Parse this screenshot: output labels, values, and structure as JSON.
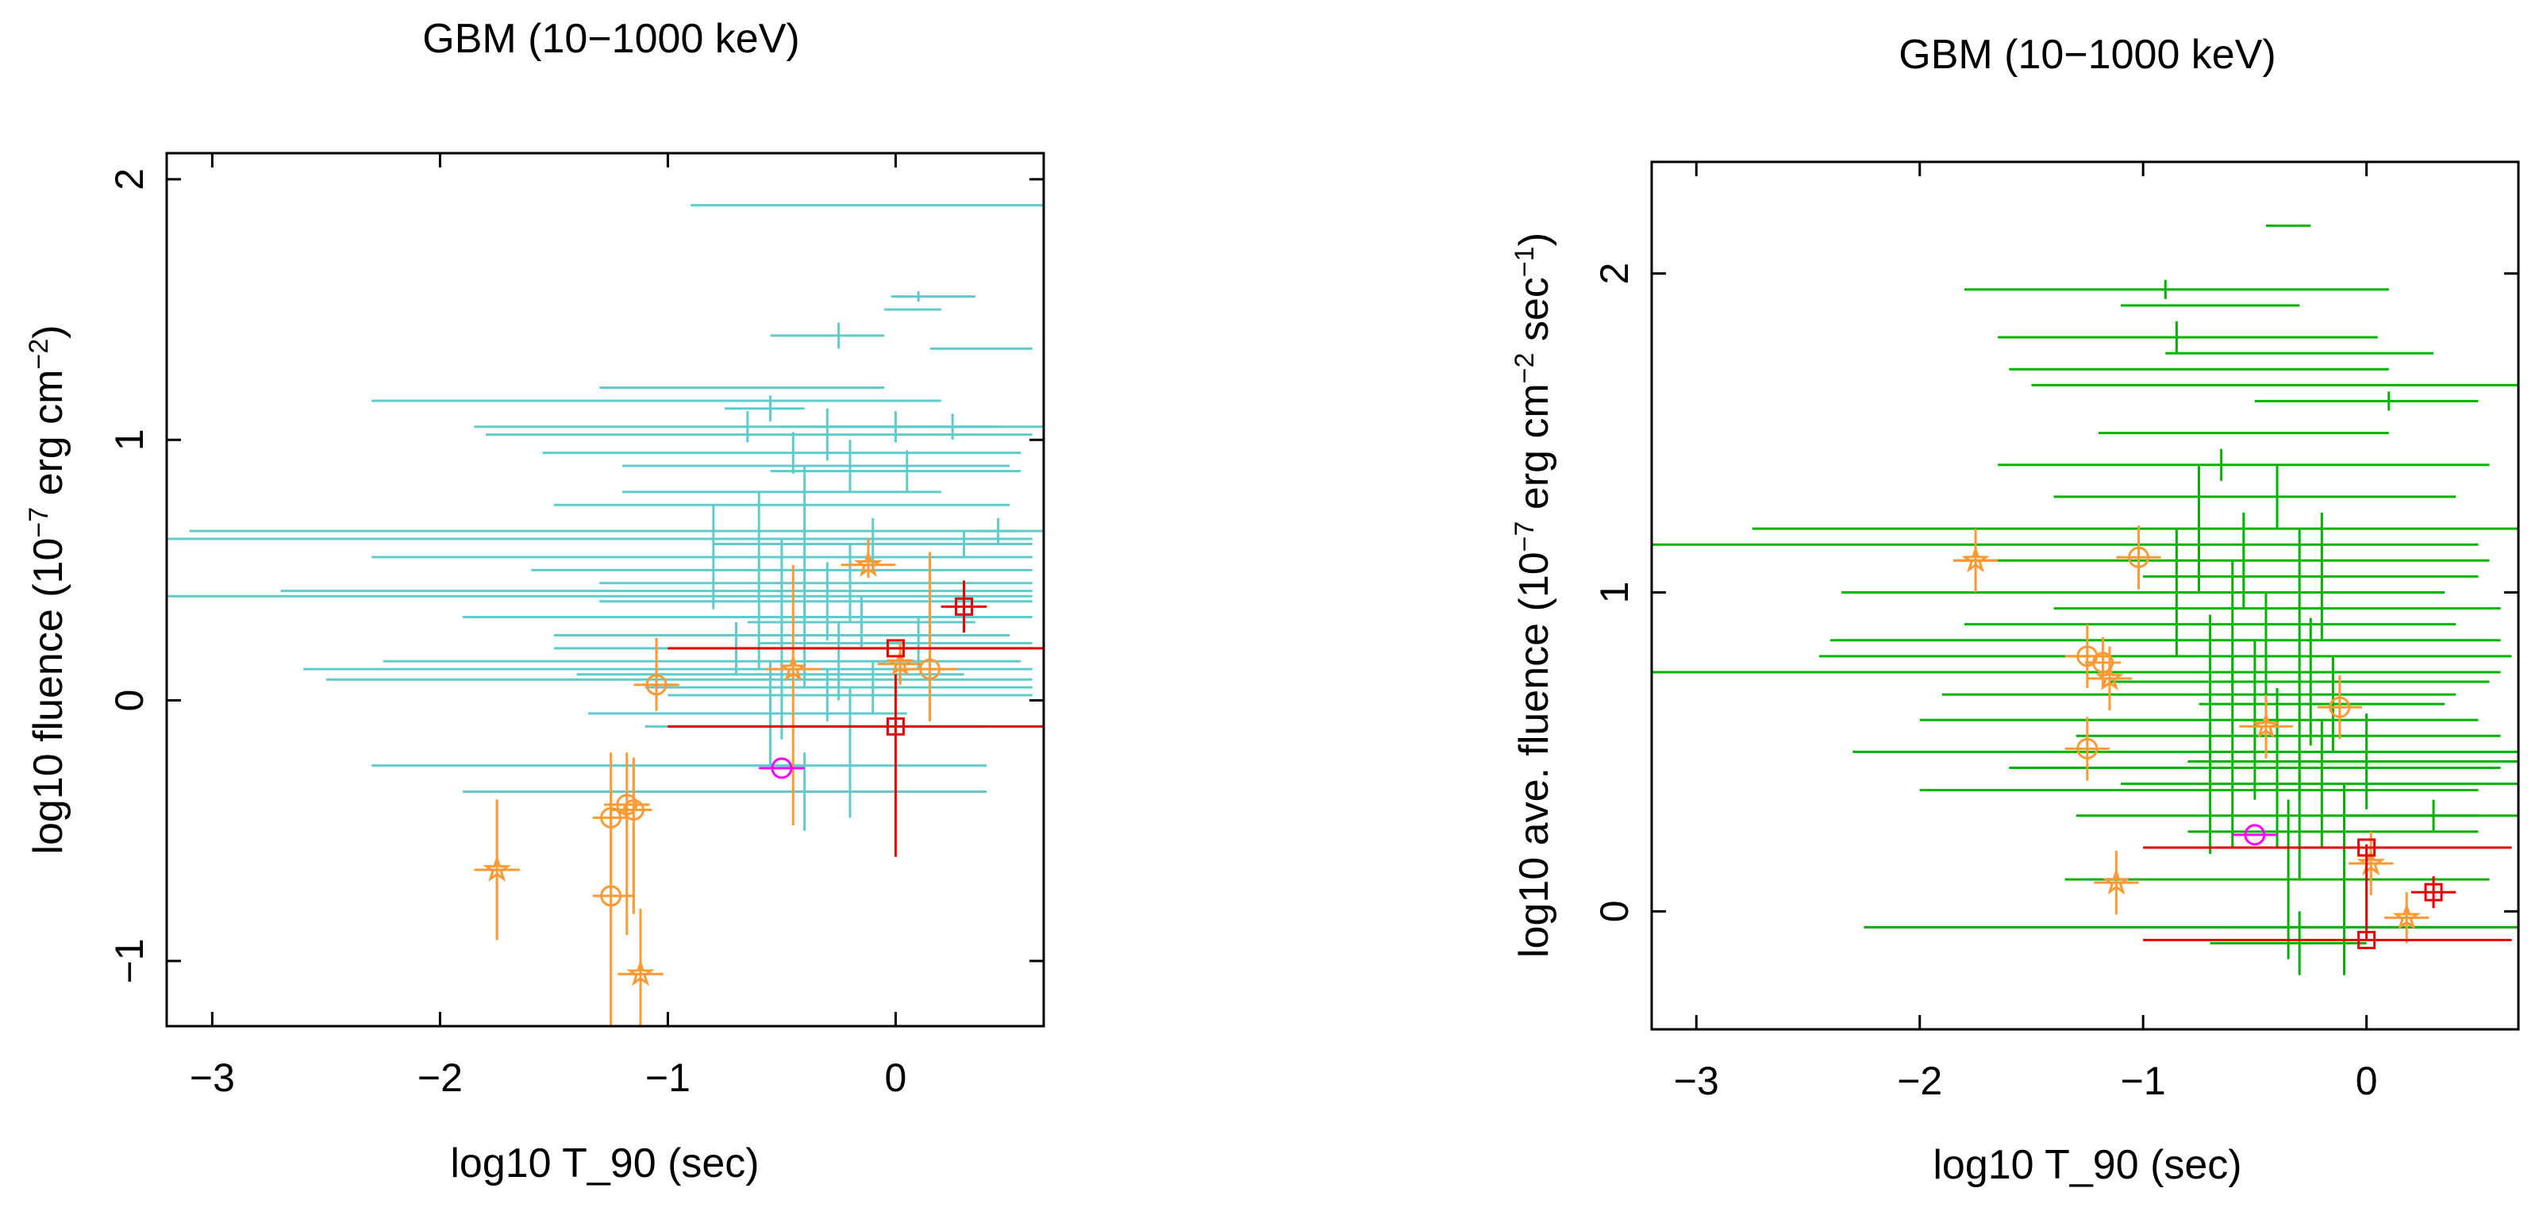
{
  "chart_data": [
    {
      "type": "scatter",
      "title": "GBM (10−1000 keV)",
      "xlabel": "log10 T_90 (sec)",
      "ylabel_parts": [
        "log10 fluence (10",
        "−7",
        " erg cm",
        "−2",
        ")"
      ],
      "xlim": [
        -3.2,
        0.65
      ],
      "ylim": [
        -1.25,
        2.1
      ],
      "xticks": [
        -3,
        -2,
        -1,
        0
      ],
      "xticklabels": [
        "−3",
        "−2",
        "−1",
        "0"
      ],
      "yticks": [
        -1,
        0,
        1,
        2
      ],
      "yticklabels": [
        "−1",
        "0",
        "1",
        "2"
      ],
      "series": [
        {
          "color": "#5fcbcb",
          "marker": "none",
          "points": [
            [
              0.1,
              1.9,
              -1.0,
              0.65,
              0,
              0
            ],
            [
              0.1,
              1.55,
              -0.12,
              0.25,
              0.02,
              0.02
            ],
            [
              0.1,
              1.5,
              -0.15,
              0.1,
              0,
              0
            ],
            [
              -0.25,
              1.4,
              -0.3,
              0.2,
              0.05,
              0.05
            ],
            [
              0.35,
              1.35,
              -0.2,
              0.25,
              0,
              0
            ],
            [
              -0.7,
              1.2,
              -0.6,
              0.65,
              0,
              0
            ],
            [
              -0.8,
              1.15,
              -1.5,
              1.0,
              0,
              0
            ],
            [
              -0.65,
              1.05,
              -1.2,
              1.1,
              0.06,
              0.06
            ],
            [
              -0.3,
              1.02,
              -1.5,
              0.9,
              0.1,
              0.1
            ],
            [
              0.0,
              1.05,
              -0.5,
              0.4,
              0.06,
              0.06
            ],
            [
              0.25,
              1.05,
              -0.6,
              0.4,
              0.05,
              0.05
            ],
            [
              -0.45,
              0.95,
              -1.1,
              1.0,
              0.08,
              0.08
            ],
            [
              -0.2,
              0.9,
              -1.0,
              0.7,
              0.1,
              0.1
            ],
            [
              0.05,
              0.88,
              -0.6,
              0.5,
              0.08,
              0.08
            ],
            [
              -0.4,
              0.8,
              -0.8,
              0.6,
              0.1,
              0.1
            ],
            [
              -0.7,
              0.75,
              -0.8,
              1.2,
              0,
              0
            ],
            [
              -0.6,
              0.65,
              -2.5,
              1.3,
              0.15,
              0.15
            ],
            [
              -1.5,
              0.62,
              -1.7,
              2.1,
              0,
              0
            ],
            [
              -0.1,
              0.6,
              -0.7,
              0.7,
              0.1,
              0.1
            ],
            [
              0.3,
              0.6,
              -0.4,
              0.3,
              0.05,
              0.05
            ],
            [
              -0.8,
              0.55,
              -1.5,
              1.4,
              0.2,
              0.2
            ],
            [
              -0.4,
              0.5,
              -1.2,
              1.0,
              0.2,
              0.2
            ],
            [
              -0.2,
              0.45,
              -1.1,
              0.8,
              0.15,
              0.15
            ],
            [
              -0.5,
              0.42,
              -2.2,
              1.1,
              0.2,
              0.2
            ],
            [
              -1.2,
              0.4,
              -2.0,
              1.8,
              0,
              0
            ],
            [
              -0.3,
              0.38,
              -1.0,
              0.9,
              0.15,
              0.15
            ],
            [
              -0.6,
              0.32,
              -1.3,
              1.2,
              0.2,
              0.2
            ],
            [
              -0.15,
              0.3,
              -0.5,
              0.5,
              0.1,
              0.1
            ],
            [
              -0.4,
              0.25,
              -1.1,
              0.9,
              0.2,
              0.2
            ],
            [
              0.1,
              0.22,
              -0.7,
              0.5,
              0.1,
              0.1
            ],
            [
              -0.7,
              0.2,
              -0.8,
              1.3,
              0.1,
              0.1
            ],
            [
              -0.25,
              0.15,
              -2.0,
              0.8,
              0.15,
              0.15
            ],
            [
              -0.9,
              0.12,
              -1.7,
              1.5,
              0,
              0
            ],
            [
              -0.5,
              0.1,
              -0.9,
              0.8,
              0.25,
              0.25
            ],
            [
              -0.8,
              0.08,
              -1.7,
              1.4,
              0,
              0
            ],
            [
              -0.1,
              0.05,
              -1.0,
              0.7,
              0.1,
              0.1
            ],
            [
              -0.3,
              0.02,
              -0.7,
              0.9,
              0.1,
              0.1
            ],
            [
              -0.55,
              -0.05,
              -0.8,
              0.6,
              0.2,
              0.2
            ],
            [
              -0.2,
              -0.1,
              -0.9,
              0.6,
              0.15,
              0.15
            ],
            [
              -0.5,
              -0.25,
              -1.8,
              0.9,
              0,
              0
            ],
            [
              -0.4,
              -0.35,
              -1.5,
              0.8,
              0.15,
              0.15
            ],
            [
              -0.2,
              -0.35,
              -0.4,
              0.2,
              0.1,
              0.1
            ],
            [
              0.45,
              0.65,
              -0.1,
              0.1,
              0.05,
              0.05
            ],
            [
              -0.55,
              1.12,
              -0.2,
              0.15,
              0.05,
              0.05
            ]
          ]
        },
        {
          "color": "#ff9933",
          "marker": "circle",
          "points": [
            [
              -1.05,
              0.06,
              -0.1,
              0.1,
              0.1,
              0.18
            ],
            [
              -1.25,
              -0.45,
              -0.08,
              0.08,
              0.25,
              0.25
            ],
            [
              -1.25,
              -0.75,
              -0.08,
              0.1,
              0.5,
              0.4
            ],
            [
              -1.18,
              -0.4,
              -0.1,
              0.1,
              0.5,
              0.2
            ],
            [
              -1.15,
              -0.42,
              -0.1,
              0.08,
              0.4,
              0.2
            ],
            [
              0.15,
              0.12,
              -0.12,
              0.12,
              0.2,
              0.45
            ]
          ]
        },
        {
          "color": "#ff9933",
          "marker": "star",
          "points": [
            [
              -1.75,
              -0.65,
              -0.1,
              0.1,
              0.27,
              0.27
            ],
            [
              -1.12,
              -1.05,
              -0.1,
              0.1,
              0.25,
              0.25
            ],
            [
              -0.45,
              0.12,
              -0.12,
              0.12,
              0.6,
              0.4
            ],
            [
              -0.12,
              0.52,
              -0.12,
              0.12,
              0.05,
              0.1
            ],
            [
              0.02,
              0.14,
              -0.1,
              0.1,
              0.08,
              0.08
            ]
          ]
        },
        {
          "color": "#e60000",
          "marker": "square",
          "points": [
            [
              0.0,
              0.2,
              -1.0,
              0.65,
              0,
              0
            ],
            [
              0.0,
              -0.1,
              -1.0,
              0.65,
              0.5,
              0.2
            ],
            [
              0.3,
              0.36,
              -0.1,
              0.1,
              0.1,
              0.1
            ]
          ]
        },
        {
          "color": "#ff00ff",
          "marker": "circle",
          "points": [
            [
              -0.5,
              -0.26,
              -0.1,
              0.1,
              0,
              0
            ]
          ]
        }
      ]
    },
    {
      "type": "scatter",
      "title": "GBM (10−1000 keV)",
      "xlabel": "log10 T_90 (sec)",
      "ylabel_parts": [
        "log10 ave. fluence (10",
        "−7",
        " erg cm",
        "−2",
        " sec",
        "−1",
        ")"
      ],
      "xlim": [
        -3.2,
        0.68
      ],
      "ylim": [
        -0.37,
        2.35
      ],
      "xticks": [
        -3,
        -2,
        -1,
        0
      ],
      "xticklabels": [
        "−3",
        "−2",
        "−1",
        "0"
      ],
      "yticks": [
        0,
        1,
        2
      ],
      "yticklabels": [
        "0",
        "1",
        "2"
      ],
      "series": [
        {
          "color": "#00b300",
          "marker": "none",
          "points": [
            [
              -0.35,
              2.15,
              -0.1,
              0.1,
              0,
              0
            ],
            [
              -0.9,
              1.95,
              -0.9,
              1.0,
              0.03,
              0.03
            ],
            [
              -0.6,
              1.9,
              -0.5,
              0.3,
              0,
              0
            ],
            [
              -0.85,
              1.8,
              -0.8,
              0.9,
              0.05,
              0.05
            ],
            [
              -0.2,
              1.75,
              -0.7,
              0.5,
              0,
              0
            ],
            [
              -0.6,
              1.7,
              -1.0,
              0.7,
              0,
              0
            ],
            [
              -0.3,
              1.65,
              -1.2,
              1.0,
              0,
              0
            ],
            [
              0.1,
              1.6,
              -0.6,
              0.4,
              0.03,
              0.03
            ],
            [
              -0.5,
              1.5,
              -0.7,
              0.6,
              0,
              0
            ],
            [
              -0.65,
              1.4,
              -1.0,
              1.2,
              0.05,
              0.05
            ],
            [
              -0.4,
              1.3,
              -1.0,
              0.8,
              0.1,
              0.1
            ],
            [
              -0.75,
              1.2,
              -2.0,
              1.8,
              0.2,
              0.2
            ],
            [
              -1.5,
              1.15,
              -1.7,
              2.0,
              0,
              0
            ],
            [
              -0.55,
              1.1,
              -1.3,
              1.1,
              0.15,
              0.15
            ],
            [
              -0.2,
              1.05,
              -0.8,
              0.7,
              0.2,
              0.2
            ],
            [
              -0.85,
              1.0,
              -1.5,
              1.2,
              0.2,
              0.2
            ],
            [
              -0.3,
              0.95,
              -1.1,
              0.9,
              0.25,
              0.25
            ],
            [
              -0.6,
              0.9,
              -1.2,
              1.0,
              0.2,
              0.2
            ],
            [
              -1.0,
              0.85,
              -1.4,
              1.6,
              0,
              0
            ],
            [
              -0.45,
              0.8,
              -2.0,
              1.1,
              0.2,
              0.2
            ],
            [
              -1.5,
              0.75,
              -1.7,
              2.1,
              0,
              0
            ],
            [
              -0.25,
              0.72,
              -0.9,
              0.8,
              0.2,
              0.2
            ],
            [
              -0.7,
              0.68,
              -1.2,
              1.1,
              0.25,
              0.25
            ],
            [
              -0.15,
              0.65,
              -0.6,
              0.5,
              0.15,
              0.15
            ],
            [
              -0.5,
              0.6,
              -1.5,
              1.0,
              0.25,
              0.25
            ],
            [
              -0.3,
              0.55,
              -1.0,
              0.9,
              0.2,
              0.2
            ],
            [
              -0.6,
              0.5,
              -1.7,
              1.3,
              0.3,
              0.3
            ],
            [
              0.0,
              0.47,
              -0.8,
              0.7,
              0.15,
              0.15
            ],
            [
              -0.4,
              0.45,
              -1.2,
              1.0,
              0.25,
              0.25
            ],
            [
              -0.2,
              0.4,
              -0.9,
              0.9,
              0.2,
              0.2
            ],
            [
              -0.7,
              0.38,
              -1.3,
              1.2,
              0.2,
              0.2
            ],
            [
              0.3,
              0.3,
              -0.4,
              0.4,
              0.05,
              0.05
            ],
            [
              -0.3,
              0.3,
              -1.0,
              0.8,
              0.2,
              0.2
            ],
            [
              -0.1,
              0.25,
              -0.7,
              0.6,
              0.15,
              0.15
            ],
            [
              -0.35,
              0.1,
              -1.0,
              0.9,
              0.25,
              0.25
            ],
            [
              -0.25,
              -0.05,
              -2.0,
              1.1,
              0,
              0
            ],
            [
              -0.3,
              -0.1,
              -0.4,
              0.3,
              0.1,
              0.1
            ],
            [
              -0.1,
              -0.05,
              -0.5,
              0.4,
              0.15,
              0.15
            ]
          ]
        },
        {
          "color": "#ff9933",
          "marker": "circle",
          "points": [
            [
              -1.25,
              0.8,
              -0.1,
              0.1,
              0.1,
              0.1
            ],
            [
              -1.25,
              0.51,
              -0.1,
              0.1,
              0.1,
              0.1
            ],
            [
              -1.18,
              0.78,
              -0.08,
              0.08,
              0.08,
              0.08
            ],
            [
              -1.02,
              1.11,
              -0.1,
              0.1,
              0.1,
              0.1
            ],
            [
              -0.12,
              0.64,
              -0.1,
              0.1,
              0.1,
              0.1
            ]
          ]
        },
        {
          "color": "#ff9933",
          "marker": "star",
          "points": [
            [
              -1.75,
              1.1,
              -0.1,
              0.1,
              0.1,
              0.1
            ],
            [
              -1.15,
              0.73,
              -0.1,
              0.1,
              0.1,
              0.1
            ],
            [
              -1.12,
              0.09,
              -0.1,
              0.1,
              0.1,
              0.1
            ],
            [
              -0.45,
              0.58,
              -0.12,
              0.12,
              0.1,
              0.1
            ],
            [
              0.02,
              0.15,
              -0.1,
              0.1,
              0.1,
              0.1
            ],
            [
              0.18,
              -0.02,
              -0.1,
              0.1,
              0.08,
              0.08
            ]
          ]
        },
        {
          "color": "#e60000",
          "marker": "square",
          "points": [
            [
              0.0,
              0.2,
              -1.0,
              0.65,
              0,
              0
            ],
            [
              0.0,
              -0.09,
              -1.0,
              0.65,
              0,
              0.3
            ],
            [
              0.3,
              0.06,
              -0.1,
              0.1,
              0.05,
              0.05
            ]
          ]
        },
        {
          "color": "#ff00ff",
          "marker": "circle",
          "points": [
            [
              -0.5,
              0.24,
              -0.1,
              0.1,
              0,
              0
            ]
          ]
        }
      ]
    }
  ]
}
